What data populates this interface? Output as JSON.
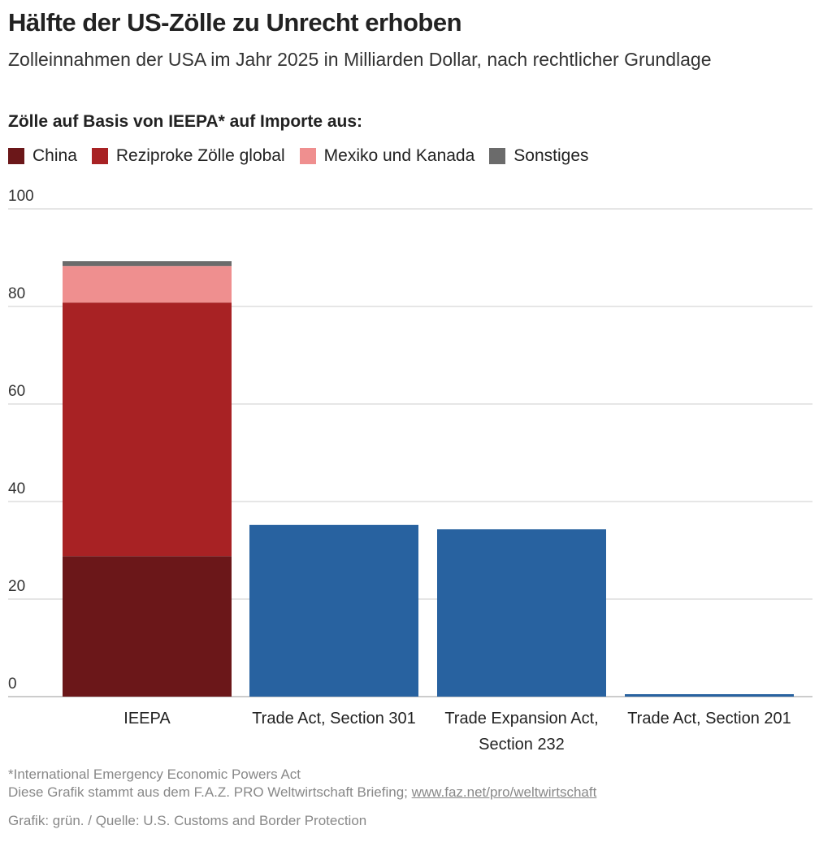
{
  "title": "Hälfte der US-Zölle zu Unrecht erhoben",
  "subtitle": "Zolleinnahmen der USA im Jahr 2025 in Milliarden Dollar, nach rechtlicher Grundlage",
  "legend_title": "Zölle auf Basis von IEEPA* auf Importe aus:",
  "chart_data": {
    "type": "bar",
    "stacked": true,
    "categories": [
      "IEEPA",
      "Trade Act, Section 301",
      "Trade Expansion Act, Section 232",
      "Trade Act, Section 201"
    ],
    "category_labels": [
      [
        "IEEPA"
      ],
      [
        "Trade Act, Section 301"
      ],
      [
        "Trade Expansion Act,",
        "Section 232"
      ],
      [
        "Trade Act, Section 201"
      ]
    ],
    "series": [
      {
        "name": "China",
        "color": "#6b1719",
        "values": [
          28.8,
          null,
          null,
          null
        ]
      },
      {
        "name": "Reziproke Zölle global",
        "color": "#a82224",
        "values": [
          52.0,
          null,
          null,
          null
        ]
      },
      {
        "name": "Mexiko und Kanada",
        "color": "#ef8f8f",
        "values": [
          7.5,
          null,
          null,
          null
        ]
      },
      {
        "name": "Sonstiges",
        "color": "#6b6b6b",
        "values": [
          1.0,
          null,
          null,
          null
        ]
      }
    ],
    "other_values": {
      "color": "#2862a0",
      "values": [
        null,
        35.2,
        34.3,
        0.5
      ]
    },
    "ylim": [
      0,
      100
    ],
    "yticks": [
      "0",
      "20",
      "40",
      "60",
      "80",
      "100"
    ],
    "grid": true,
    "legend_position": "top-left"
  },
  "footer": {
    "note": "*International Emergency Economic Powers Act",
    "source_line": "Diese Grafik stammt aus dem F.A.Z. PRO Weltwirtschaft Briefing; ",
    "link": "www.faz.net/pro/weltwirtschaft",
    "credit": "Grafik: grün. / Quelle: U.S. Customs and Border Protection"
  }
}
